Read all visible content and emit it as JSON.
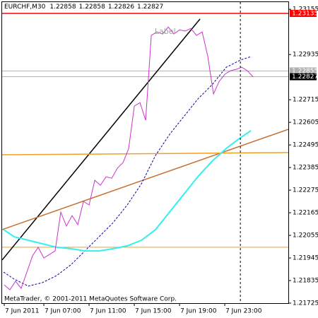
{
  "chart_data": {
    "type": "line",
    "title": "EURCHF,M30",
    "ohlc": [
      1.22858,
      1.22858,
      1.22826,
      1.22827
    ],
    "footer": "MetaTrader, © 2001-2011 MetaQuotes Software Corp.",
    "annotation": {
      "text": "Label",
      "x": 16.8,
      "y": 1.23045,
      "color": "#a0a0a0"
    },
    "xlim": [
      3.31,
      28.62
    ],
    "ylim": [
      1.21725,
      1.2319
    ],
    "xticks": [
      {
        "value": 3.5,
        "label": "7 Jun 2011"
      },
      {
        "value": 7,
        "label": "7 Jun 07:00"
      },
      {
        "value": 11,
        "label": "7 Jun 11:00"
      },
      {
        "value": 15,
        "label": "7 Jun 15:00"
      },
      {
        "value": 19,
        "label": "7 Jun 19:00"
      },
      {
        "value": 23,
        "label": "7 Jun 23:00"
      }
    ],
    "yticks": [
      1.23155,
      1.22935,
      1.22715,
      1.22605,
      1.22495,
      1.22385,
      1.22275,
      1.22165,
      1.22055,
      1.21945,
      1.21835,
      1.21725
    ],
    "cursor_x": 24.38,
    "levels": [
      {
        "value": 1.23135,
        "color": "#ff0000",
        "box": "#ff0000"
      },
      {
        "value": 1.22855,
        "color": "#b0b0b0",
        "box": "#b0b0b0"
      },
      {
        "value": 1.22827,
        "color": "#b0b0b0",
        "box": "#000000"
      },
      {
        "value": 1.21997,
        "color": "#f0a020"
      }
    ],
    "trendlines": [
      {
        "color": "#000000",
        "x": [
          3.31,
          20.81
        ],
        "values": [
          1.21935,
          1.23108
        ]
      },
      {
        "color": "#c87030",
        "x": [
          3.31,
          28.62
        ],
        "values": [
          1.22083,
          1.22571
        ]
      },
      {
        "color": "#f0a020",
        "x": [
          3.31,
          28.62
        ],
        "values": [
          1.22447,
          1.22458
        ]
      }
    ],
    "series": [
      {
        "color": "#0000aa",
        "dashed": true,
        "width": 1,
        "x": [
          3.44,
          4.38,
          5.63,
          6.88,
          8.13,
          9.38,
          10.63,
          11.88,
          13.13,
          14.38,
          15.63,
          16.88,
          18.13,
          19.38,
          20.63,
          21.88,
          23.13,
          24.38,
          25.31
        ],
        "values": [
          1.21876,
          1.21842,
          1.21808,
          1.21825,
          1.21859,
          1.21911,
          1.21979,
          1.22048,
          1.22117,
          1.22203,
          1.22306,
          1.22444,
          1.22547,
          1.22633,
          1.22719,
          1.22788,
          1.22873,
          1.22908,
          1.22925
        ]
      },
      {
        "color": "#33f0f0",
        "dashed": false,
        "width": 2,
        "x": [
          3.44,
          4.38,
          5.63,
          6.88,
          8.13,
          9.38,
          10.63,
          11.88,
          13.13,
          14.38,
          15.63,
          16.88,
          18.13,
          19.38,
          20.63,
          21.88,
          23.13,
          24.38,
          25.31
        ],
        "values": [
          1.22083,
          1.22048,
          1.22031,
          1.22014,
          1.21997,
          1.2199,
          1.21979,
          1.21979,
          1.2199,
          1.22004,
          1.22031,
          1.22083,
          1.22169,
          1.22255,
          1.22341,
          1.22416,
          1.22478,
          1.2253,
          1.22564
        ]
      },
      {
        "color": "#cc33cc",
        "dashed": false,
        "width": 1,
        "x": [
          3.5,
          4,
          4.5,
          5,
          5.5,
          6,
          6.5,
          7,
          7.5,
          8,
          8.5,
          9,
          9.5,
          10,
          10.5,
          11,
          11.5,
          12,
          12.5,
          13,
          13.5,
          14,
          14.5,
          15,
          15.5,
          16,
          16.5,
          17,
          17.5,
          18,
          18.5,
          19,
          19.5,
          20,
          20.5,
          21,
          21.5,
          22,
          22.5,
          23,
          23.5,
          24,
          24.5,
          25,
          25.5
        ],
        "values": [
          1.21814,
          1.2179,
          1.21832,
          1.21797,
          1.21876,
          1.21955,
          1.21997,
          1.21945,
          1.21962,
          1.21979,
          1.22168,
          1.221,
          1.22151,
          1.22107,
          1.2222,
          1.22203,
          1.22323,
          1.22299,
          1.2234,
          1.22333,
          1.22382,
          1.22409,
          1.22478,
          1.22684,
          1.22701,
          1.22615,
          1.23028,
          1.23045,
          1.23035,
          1.23069,
          1.23035,
          1.23055,
          1.23049,
          1.23062,
          1.23028,
          1.23045,
          1.22925,
          1.22743,
          1.22804,
          1.22839,
          1.22856,
          1.22863,
          1.22873,
          1.22856,
          1.22827
        ]
      }
    ]
  }
}
